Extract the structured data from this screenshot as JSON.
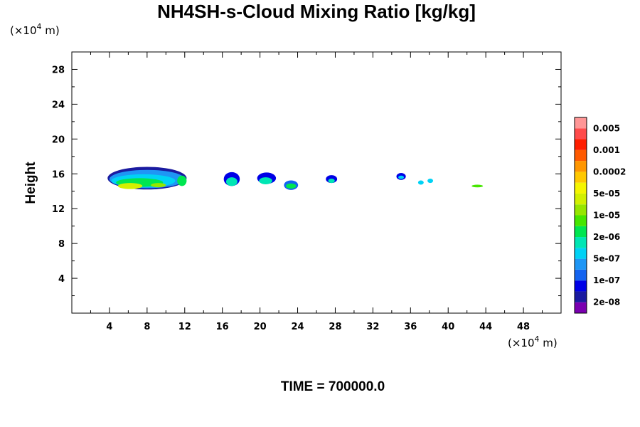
{
  "chart_data": {
    "type": "heatmap",
    "title": "NH4SH-s-Cloud Mixing Ratio [kg/kg]",
    "ylabel": "Height",
    "xlabel": "",
    "x_unit": {
      "prefix": "(×10",
      "exp": "4",
      "suffix": " m)"
    },
    "y_unit": {
      "prefix": "(×10",
      "exp": "4",
      "suffix": " m)"
    },
    "xlim": [
      0,
      52
    ],
    "ylim": [
      0,
      30
    ],
    "x_ticks": [
      4,
      8,
      12,
      16,
      20,
      24,
      28,
      32,
      36,
      40,
      44,
      48
    ],
    "y_ticks": [
      4,
      8,
      12,
      16,
      20,
      24,
      28
    ],
    "colorbar": {
      "colors": [
        "#7a00b0",
        "#1a1aa0",
        "#0000e6",
        "#1464f0",
        "#1e96f5",
        "#00d2f5",
        "#00e6b4",
        "#00e650",
        "#46e600",
        "#96e600",
        "#d2f000",
        "#f5f500",
        "#ffc800",
        "#ff9600",
        "#ff5a00",
        "#ff1e00",
        "#ff4b4b",
        "#ff9696"
      ],
      "labels": [
        "2e-08",
        "1e-07",
        "5e-07",
        "2e-06",
        "1e-05",
        "5e-05",
        "0.0002",
        "0.001",
        "0.005"
      ]
    },
    "cloud_cells": [
      {
        "x": 8,
        "y": 15.5,
        "w": 8.4,
        "h": 2.6,
        "level": 1
      },
      {
        "x": 8,
        "y": 15.4,
        "w": 8.0,
        "h": 2.1,
        "level": 4
      },
      {
        "x": 7.6,
        "y": 15.2,
        "w": 6.8,
        "h": 1.5,
        "level": 5
      },
      {
        "x": 7.2,
        "y": 15.0,
        "w": 5.0,
        "h": 1.0,
        "level": 7
      },
      {
        "x": 6.2,
        "y": 14.6,
        "w": 2.6,
        "h": 0.7,
        "level": 10
      },
      {
        "x": 9.2,
        "y": 14.7,
        "w": 1.6,
        "h": 0.5,
        "level": 9
      },
      {
        "x": 11.7,
        "y": 15.2,
        "w": 1.0,
        "h": 1.2,
        "level": 7
      },
      {
        "x": 17.0,
        "y": 15.4,
        "w": 1.7,
        "h": 1.6,
        "level": 2
      },
      {
        "x": 17.0,
        "y": 15.1,
        "w": 1.2,
        "h": 1.0,
        "level": 6
      },
      {
        "x": 20.7,
        "y": 15.5,
        "w": 2.0,
        "h": 1.3,
        "level": 2
      },
      {
        "x": 20.6,
        "y": 15.2,
        "w": 1.4,
        "h": 0.8,
        "level": 6
      },
      {
        "x": 23.3,
        "y": 14.7,
        "w": 1.5,
        "h": 1.1,
        "level": 3
      },
      {
        "x": 23.3,
        "y": 14.6,
        "w": 1.1,
        "h": 0.6,
        "level": 7
      },
      {
        "x": 27.6,
        "y": 15.4,
        "w": 1.2,
        "h": 0.9,
        "level": 2
      },
      {
        "x": 27.6,
        "y": 15.2,
        "w": 0.7,
        "h": 0.5,
        "level": 6
      },
      {
        "x": 35.0,
        "y": 15.7,
        "w": 1.0,
        "h": 0.8,
        "level": 2
      },
      {
        "x": 35.0,
        "y": 15.6,
        "w": 0.6,
        "h": 0.4,
        "level": 5
      },
      {
        "x": 37.1,
        "y": 15.0,
        "w": 0.6,
        "h": 0.5,
        "level": 5
      },
      {
        "x": 38.1,
        "y": 15.2,
        "w": 0.6,
        "h": 0.5,
        "level": 5
      },
      {
        "x": 43.1,
        "y": 14.6,
        "w": 1.2,
        "h": 0.3,
        "level": 8
      }
    ],
    "footer": {
      "label": "TIME = ",
      "value": "700000.0"
    }
  }
}
